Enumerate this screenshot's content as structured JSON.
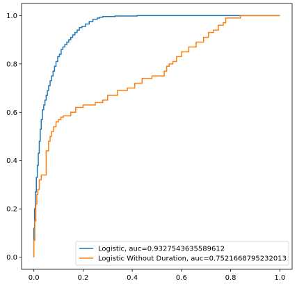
{
  "chart_data": {
    "type": "line",
    "title": "",
    "xlabel": "",
    "ylabel": "",
    "xlim": [
      -0.05,
      1.05
    ],
    "ylim": [
      -0.05,
      1.05
    ],
    "grid": false,
    "xticks": [
      0.0,
      0.2,
      0.4,
      0.6,
      0.8,
      1.0
    ],
    "yticks": [
      0.0,
      0.2,
      0.4,
      0.6,
      0.8,
      1.0
    ],
    "xtick_labels": [
      "0.0",
      "0.2",
      "0.4",
      "0.6",
      "0.8",
      "1.0"
    ],
    "ytick_labels": [
      "0.0",
      "0.2",
      "0.4",
      "0.6",
      "0.8",
      "1.0"
    ],
    "legend_position": "bottom-right",
    "series": [
      {
        "name": "Logistic, auc=0.9327543635589612",
        "color": "#1f77b4",
        "x": [
          0.0,
          0.0,
          0.003,
          0.003,
          0.006,
          0.006,
          0.01,
          0.01,
          0.014,
          0.014,
          0.018,
          0.018,
          0.022,
          0.022,
          0.026,
          0.026,
          0.03,
          0.03,
          0.035,
          0.035,
          0.04,
          0.04,
          0.045,
          0.045,
          0.05,
          0.05,
          0.055,
          0.055,
          0.06,
          0.06,
          0.066,
          0.066,
          0.072,
          0.072,
          0.078,
          0.078,
          0.084,
          0.084,
          0.09,
          0.09,
          0.097,
          0.097,
          0.104,
          0.104,
          0.111,
          0.111,
          0.118,
          0.118,
          0.126,
          0.126,
          0.134,
          0.134,
          0.142,
          0.142,
          0.15,
          0.15,
          0.158,
          0.158,
          0.167,
          0.167,
          0.176,
          0.176,
          0.185,
          0.185,
          0.195,
          0.195,
          0.21,
          0.21,
          0.225,
          0.225,
          0.24,
          0.24,
          0.258,
          0.258,
          0.268,
          0.268,
          0.28,
          0.28,
          0.33,
          0.33,
          0.42,
          0.42,
          1.0
        ],
        "y": [
          0.0,
          0.12,
          0.12,
          0.2,
          0.2,
          0.27,
          0.27,
          0.33,
          0.33,
          0.38,
          0.38,
          0.43,
          0.43,
          0.48,
          0.48,
          0.53,
          0.53,
          0.57,
          0.57,
          0.61,
          0.61,
          0.63,
          0.63,
          0.65,
          0.65,
          0.67,
          0.67,
          0.69,
          0.69,
          0.71,
          0.71,
          0.73,
          0.73,
          0.75,
          0.75,
          0.77,
          0.77,
          0.79,
          0.79,
          0.81,
          0.81,
          0.83,
          0.83,
          0.84,
          0.84,
          0.86,
          0.86,
          0.87,
          0.87,
          0.88,
          0.88,
          0.89,
          0.89,
          0.9,
          0.9,
          0.91,
          0.91,
          0.92,
          0.92,
          0.93,
          0.93,
          0.94,
          0.94,
          0.95,
          0.95,
          0.955,
          0.955,
          0.965,
          0.965,
          0.975,
          0.975,
          0.985,
          0.985,
          0.99,
          0.99,
          0.993,
          0.993,
          0.996,
          0.996,
          0.998,
          0.998,
          1.0,
          1.0
        ]
      },
      {
        "name": "Logistic Without Duration, auc=0.7521668795232013",
        "color": "#ff7f0e",
        "x": [
          0.0,
          0.0,
          0.004,
          0.004,
          0.008,
          0.008,
          0.012,
          0.012,
          0.016,
          0.016,
          0.022,
          0.022,
          0.03,
          0.03,
          0.05,
          0.05,
          0.06,
          0.06,
          0.066,
          0.066,
          0.072,
          0.072,
          0.08,
          0.08,
          0.09,
          0.09,
          0.1,
          0.1,
          0.11,
          0.11,
          0.12,
          0.12,
          0.15,
          0.15,
          0.17,
          0.17,
          0.2,
          0.2,
          0.25,
          0.25,
          0.28,
          0.28,
          0.3,
          0.3,
          0.34,
          0.34,
          0.38,
          0.38,
          0.41,
          0.41,
          0.44,
          0.44,
          0.48,
          0.48,
          0.53,
          0.53,
          0.54,
          0.54,
          0.55,
          0.55,
          0.565,
          0.565,
          0.58,
          0.58,
          0.6,
          0.6,
          0.63,
          0.63,
          0.66,
          0.66,
          0.69,
          0.69,
          0.71,
          0.71,
          0.73,
          0.73,
          0.75,
          0.75,
          0.77,
          0.77,
          0.78,
          0.78,
          0.8,
          0.8,
          0.84,
          0.84,
          0.88,
          0.88,
          0.92,
          0.92,
          0.96,
          0.96,
          1.0
        ],
        "y": [
          0.0,
          0.07,
          0.07,
          0.15,
          0.15,
          0.22,
          0.22,
          0.26,
          0.26,
          0.28,
          0.28,
          0.32,
          0.32,
          0.34,
          0.34,
          0.44,
          0.44,
          0.48,
          0.48,
          0.5,
          0.5,
          0.52,
          0.52,
          0.54,
          0.54,
          0.56,
          0.56,
          0.57,
          0.57,
          0.58,
          0.58,
          0.585,
          0.585,
          0.6,
          0.6,
          0.62,
          0.62,
          0.63,
          0.63,
          0.64,
          0.64,
          0.65,
          0.65,
          0.67,
          0.67,
          0.69,
          0.69,
          0.7,
          0.7,
          0.72,
          0.72,
          0.74,
          0.74,
          0.75,
          0.75,
          0.77,
          0.77,
          0.79,
          0.79,
          0.8,
          0.8,
          0.81,
          0.81,
          0.83,
          0.83,
          0.85,
          0.85,
          0.87,
          0.87,
          0.89,
          0.89,
          0.91,
          0.91,
          0.93,
          0.93,
          0.94,
          0.94,
          0.96,
          0.96,
          0.97,
          0.97,
          0.99,
          0.99,
          0.99,
          0.99,
          1.0,
          1.0,
          1.0,
          1.0,
          1.0,
          1.0,
          1.0,
          1.0
        ]
      }
    ]
  }
}
